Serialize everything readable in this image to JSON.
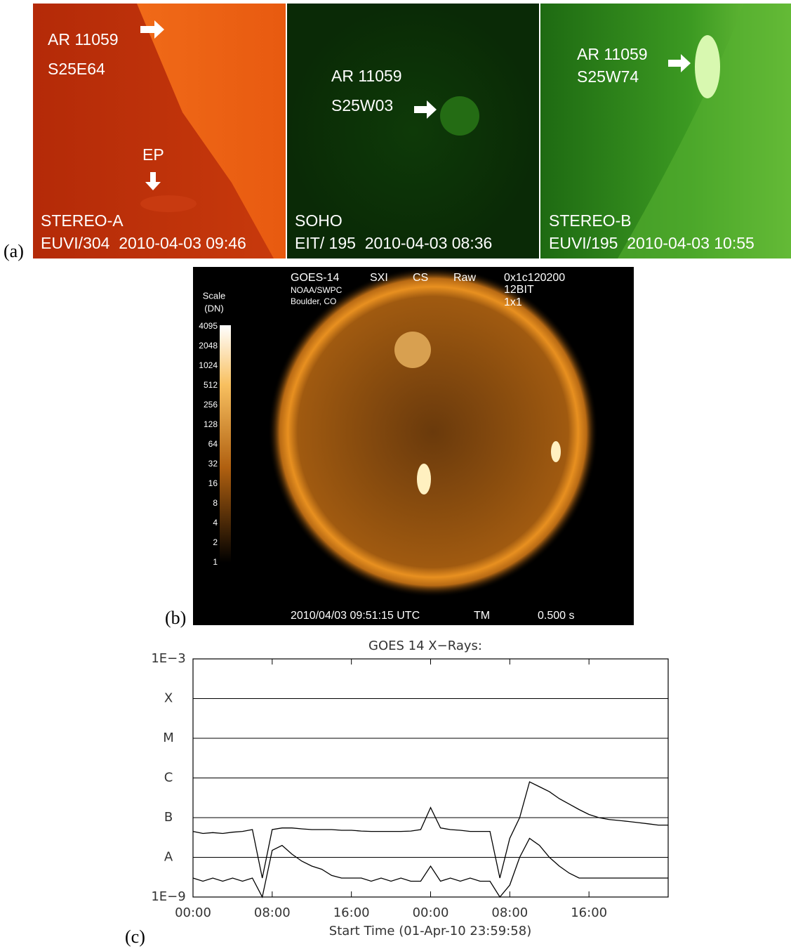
{
  "figure": {
    "a": {
      "label": "(a)",
      "images": [
        {
          "annotations": [
            "AR 11059",
            "S25E64"
          ],
          "marker": "EP",
          "instrument": "STEREO-A",
          "caption": "EUVI/304  2010-04-03 09:46"
        },
        {
          "annotations": [
            "AR 11059",
            "S25W03"
          ],
          "instrument": "SOHO",
          "caption": "EIT/ 195  2010-04-03 08:36"
        },
        {
          "annotations": [
            "AR 11059",
            "S25W74"
          ],
          "instrument": "STEREO-B",
          "caption": "EUVI/195  2010-04-03 10:55"
        }
      ]
    },
    "b": {
      "label": "(b)",
      "header": [
        "GOES-14",
        "SXI",
        "CS",
        "Raw",
        "0x1c120200"
      ],
      "subheader": [
        "NOAA/SWPC",
        "Boulder, CO"
      ],
      "format": [
        "12BIT",
        "1x1"
      ],
      "scale_title": [
        "Scale",
        "(DN)"
      ],
      "scale_ticks": [
        4095,
        2048,
        1024,
        512,
        256,
        128,
        64,
        32,
        16,
        8,
        4,
        2,
        1
      ],
      "footer": [
        "2010/04/03 09:51:15 UTC",
        "TM",
        "0.500 s"
      ]
    },
    "c": {
      "label": "(c)"
    }
  },
  "chart_data": {
    "type": "line",
    "title": "GOES 14 X−Rays:",
    "x_label": "Start Time (01-Apr-10 23:59:58)",
    "x": [
      0,
      1,
      2,
      3,
      4,
      5,
      6,
      7,
      8,
      9,
      10,
      11,
      12,
      13,
      14,
      15,
      16,
      17,
      18,
      19,
      20,
      21,
      22,
      23,
      24,
      25,
      26,
      27,
      28,
      29,
      30,
      31,
      32,
      33,
      34,
      35,
      36,
      37,
      38,
      39,
      40,
      41,
      42,
      43,
      44,
      45,
      46,
      47,
      48
    ],
    "series": [
      {
        "color": "#000000",
        "values": [
          4.5e-08,
          4e-08,
          4.2e-08,
          4e-08,
          4.3e-08,
          4.5e-08,
          5e-08,
          3e-09,
          5e-08,
          5.5e-08,
          5.5e-08,
          5.2e-08,
          5e-08,
          5e-08,
          5e-08,
          4.8e-08,
          4.8e-08,
          4.6e-08,
          4.5e-08,
          4.5e-08,
          4.5e-08,
          4.5e-08,
          4.6e-08,
          5e-08,
          1.8e-07,
          5.5e-08,
          5e-08,
          4.8e-08,
          4.5e-08,
          4.5e-08,
          4.5e-08,
          3e-09,
          3e-08,
          1e-07,
          8e-07,
          6e-07,
          4.5e-07,
          3e-07,
          2.2e-07,
          1.6e-07,
          1.2e-07,
          1e-07,
          9e-08,
          8.5e-08,
          8e-08,
          7.5e-08,
          7e-08,
          6.5e-08,
          6.5e-08
        ]
      },
      {
        "color": "#000000",
        "values": [
          3e-09,
          2.5e-09,
          3e-09,
          2.5e-09,
          3e-09,
          2.5e-09,
          3e-09,
          1e-09,
          1.5e-08,
          2e-08,
          1.2e-08,
          8e-09,
          6e-09,
          5e-09,
          3.5e-09,
          3e-09,
          3e-09,
          3e-09,
          2.5e-09,
          3e-09,
          2.5e-09,
          3e-09,
          2.5e-09,
          2.5e-09,
          6e-09,
          2.5e-09,
          3e-09,
          2.5e-09,
          3e-09,
          2.5e-09,
          2.5e-09,
          1e-09,
          2e-09,
          1e-08,
          3e-08,
          2e-08,
          1e-08,
          6e-09,
          4e-09,
          3e-09,
          3e-09,
          3e-09,
          3e-09,
          3e-09,
          3e-09,
          3e-09,
          3e-09,
          3e-09,
          3e-09
        ]
      }
    ],
    "xlim": [
      0,
      48
    ],
    "xticks": [
      {
        "value": 0,
        "label": "00:00"
      },
      {
        "value": 8,
        "label": "08:00"
      },
      {
        "value": 16,
        "label": "16:00"
      },
      {
        "value": 24,
        "label": "00:00"
      },
      {
        "value": 32,
        "label": "08:00"
      },
      {
        "value": 40,
        "label": "16:00"
      }
    ],
    "ylim": [
      1e-09,
      0.001
    ],
    "log_y": true,
    "yticks": [
      {
        "value": 1e-09,
        "label": "1E−9"
      },
      {
        "value": 1e-08,
        "label": "A"
      },
      {
        "value": 1e-07,
        "label": "B"
      },
      {
        "value": 1e-06,
        "label": "C"
      },
      {
        "value": 1e-05,
        "label": "M"
      },
      {
        "value": 0.0001,
        "label": "X"
      },
      {
        "value": 0.001,
        "label": "1E−3"
      }
    ],
    "grid": true
  }
}
